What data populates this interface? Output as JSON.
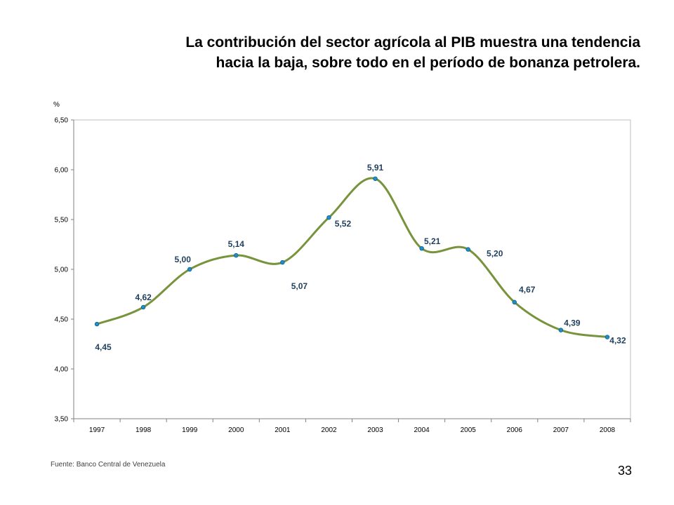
{
  "slide": {
    "title_line1": "La contribución del sector agrícola al PIB muestra una tendencia",
    "title_line2": "hacia la baja, sobre todo en el período de bonanza petrolera.",
    "source": "Fuente: Banco Central de Venezuela",
    "page_number": "33"
  },
  "colors": {
    "line": "#77933C",
    "marker": "#1F8FC8",
    "label": "#1F3F5F",
    "gridline": "#BFBFBF",
    "axis": "#808080"
  },
  "chart_data": {
    "type": "line",
    "title": "",
    "xlabel": "",
    "ylabel": "%",
    "categories": [
      "1997",
      "1998",
      "1999",
      "2000",
      "2001",
      "2002",
      "2003",
      "2004",
      "2005",
      "2006",
      "2007",
      "2008"
    ],
    "values": [
      4.45,
      4.62,
      5.0,
      5.14,
      5.07,
      5.52,
      5.91,
      5.21,
      5.2,
      4.67,
      4.39,
      4.32
    ],
    "data_labels": [
      "4,45",
      "4,62",
      "5,00",
      "5,14",
      "5,07",
      "5,52",
      "5,91",
      "5,21",
      "5,20",
      "4,67",
      "4,39",
      "4,32"
    ],
    "ylim": [
      3.5,
      6.5
    ],
    "yticks": [
      3.5,
      4.0,
      4.5,
      5.0,
      5.5,
      6.0,
      6.5
    ],
    "ytick_labels": [
      "3,50",
      "4,00",
      "4,50",
      "5,00",
      "5,50",
      "6,00",
      "6,50"
    ],
    "smooth": true,
    "grid": false,
    "legend": "none"
  }
}
